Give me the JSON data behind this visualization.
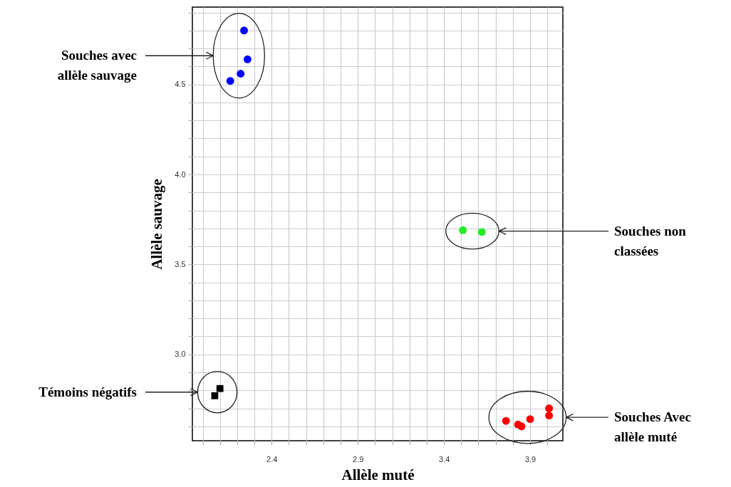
{
  "chart_data": {
    "type": "scatter",
    "xlabel": "Allèle muté",
    "ylabel": "Allèle sauvage",
    "xlim": [
      1.94,
      4.09
    ],
    "ylim": [
      2.52,
      4.93
    ],
    "xticks": [
      {
        "value": 2.0,
        "label": null
      },
      {
        "value": 2.1,
        "label": null
      },
      {
        "value": 2.2,
        "label": null
      },
      {
        "value": 2.3,
        "label": null
      },
      {
        "value": 2.4,
        "label": "2.4"
      },
      {
        "value": 2.5,
        "label": null
      },
      {
        "value": 2.6,
        "label": null
      },
      {
        "value": 2.7,
        "label": null
      },
      {
        "value": 2.8,
        "label": null
      },
      {
        "value": 2.9,
        "label": "2.9"
      },
      {
        "value": 3.0,
        "label": null
      },
      {
        "value": 3.1,
        "label": null
      },
      {
        "value": 3.2,
        "label": null
      },
      {
        "value": 3.3,
        "label": null
      },
      {
        "value": 3.4,
        "label": "3.4"
      },
      {
        "value": 3.5,
        "label": null
      },
      {
        "value": 3.6,
        "label": null
      },
      {
        "value": 3.7,
        "label": null
      },
      {
        "value": 3.8,
        "label": null
      },
      {
        "value": 3.9,
        "label": "3.9"
      },
      {
        "value": 4.0,
        "label": null
      }
    ],
    "yticks": [
      {
        "value": 2.6,
        "label": null
      },
      {
        "value": 2.7,
        "label": null
      },
      {
        "value": 2.8,
        "label": null
      },
      {
        "value": 2.9,
        "label": null
      },
      {
        "value": 3.0,
        "label": "3.0"
      },
      {
        "value": 3.1,
        "label": null
      },
      {
        "value": 3.2,
        "label": null
      },
      {
        "value": 3.3,
        "label": null
      },
      {
        "value": 3.4,
        "label": null
      },
      {
        "value": 3.5,
        "label": "3.5"
      },
      {
        "value": 3.6,
        "label": null
      },
      {
        "value": 3.7,
        "label": null
      },
      {
        "value": 3.8,
        "label": null
      },
      {
        "value": 3.9,
        "label": null
      },
      {
        "value": 4.0,
        "label": "4.0"
      },
      {
        "value": 4.1,
        "label": null
      },
      {
        "value": 4.2,
        "label": null
      },
      {
        "value": 4.3,
        "label": null
      },
      {
        "value": 4.4,
        "label": null
      },
      {
        "value": 4.5,
        "label": "4.5"
      },
      {
        "value": 4.6,
        "label": null
      },
      {
        "value": 4.7,
        "label": null
      },
      {
        "value": 4.8,
        "label": null
      },
      {
        "value": 4.9,
        "label": null
      }
    ],
    "grid": true,
    "marker": "circle",
    "series": [
      {
        "color": "#0000ff",
        "x": [
          2.24,
          2.26,
          2.22,
          2.16
        ],
        "values": [
          4.8,
          4.64,
          4.56,
          4.52
        ]
      },
      {
        "color": "#22ee22",
        "x": [
          3.51,
          3.62
        ],
        "values": [
          3.69,
          3.68
        ]
      },
      {
        "color": "#000000",
        "marker": "square",
        "x": [
          2.1,
          2.07
        ],
        "values": [
          2.81,
          2.77
        ]
      },
      {
        "color": "#ff0000",
        "x": [
          3.76,
          3.83,
          3.85,
          3.9,
          4.01,
          4.01
        ],
        "values": [
          2.63,
          2.61,
          2.6,
          2.64,
          2.7,
          2.66
        ]
      }
    ],
    "annotations": [
      "Souches avec\nallèle sauvage",
      "Souches non\nclassées",
      "Témoins négatifs",
      "Souches Avec\nallèle muté"
    ]
  }
}
